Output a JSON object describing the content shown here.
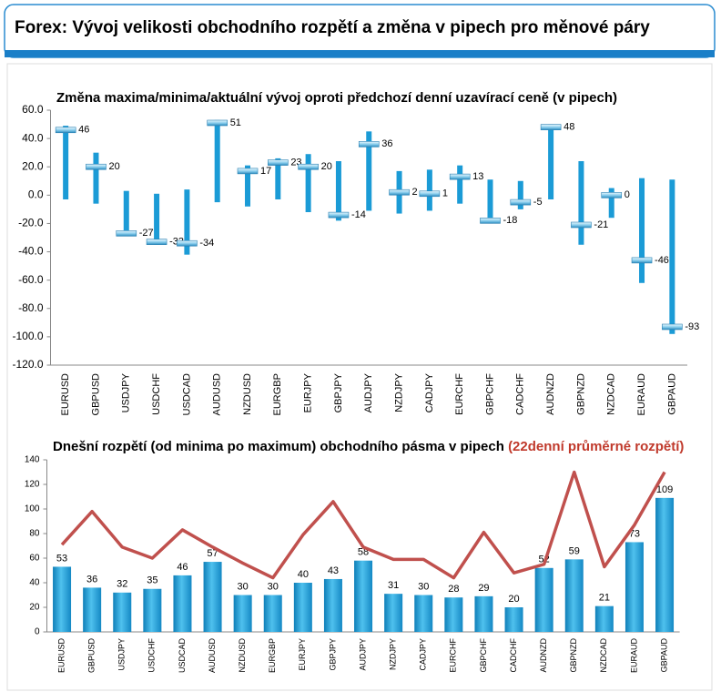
{
  "header": {
    "title": "Forex: Vývoj velikosti obchodního rozpětí a změna v pipech pro měnové páry"
  },
  "chart_data": [
    {
      "type": "range",
      "title": "Změna maxima/minima/aktuální vývoj oproti předchozí denní uzavírací ceně (v pipech)",
      "categories": [
        "EURUSD",
        "GBPUSD",
        "USDJPY",
        "USDCHF",
        "USDCAD",
        "AUDUSD",
        "NZDUSD",
        "EURGBP",
        "EURJPY",
        "GBPJPY",
        "AUDJPY",
        "NZDJPY",
        "CADJPY",
        "EURCHF",
        "GBPCHF",
        "CADCHF",
        "AUDNZD",
        "GBPNZD",
        "NZDCAD",
        "EURAUD",
        "GBPAUD"
      ],
      "high": [
        49,
        30,
        3,
        1,
        4,
        53,
        21,
        26,
        29,
        24,
        45,
        17,
        18,
        21,
        11,
        10,
        50,
        24,
        5,
        12,
        11
      ],
      "low": [
        -3,
        -6,
        -28,
        -35,
        -42,
        -5,
        -8,
        -3,
        -12,
        -18,
        -11,
        -13,
        -11,
        -6,
        -20,
        -10,
        -3,
        -35,
        -16,
        -62,
        -98
      ],
      "values": [
        46,
        20,
        -27,
        -33,
        -34,
        51,
        17,
        23,
        20,
        -14,
        36,
        2,
        1,
        13,
        -18,
        -5,
        48,
        -21,
        0,
        -46,
        -93
      ],
      "color": "#1b9bd6",
      "marker_color": "#8fd0ee",
      "ylim": [
        -120,
        60
      ],
      "yticks": [
        {
          "value": 60,
          "label": "60.0"
        },
        {
          "value": 40,
          "label": "40.0"
        },
        {
          "value": 20,
          "label": "20.0"
        },
        {
          "value": 0,
          "label": "0.0"
        },
        {
          "value": -20,
          "label": "-20.0"
        },
        {
          "value": -40,
          "label": "-40.0"
        },
        {
          "value": -60,
          "label": "-60.0"
        },
        {
          "value": -80,
          "label": "-80.0"
        },
        {
          "value": -100,
          "label": "-100.0"
        },
        {
          "value": -120,
          "label": "-120.0"
        }
      ]
    },
    {
      "type": "combo",
      "title": "Dnešní rozpětí (od minima po maximum) obchodního pásma v pipech",
      "subtitle": "(22denní průměrné rozpětí)",
      "categories": [
        "EURUSD",
        "GBPUSD",
        "USDJPY",
        "USDCHF",
        "USDCAD",
        "AUDUSD",
        "NZDUSD",
        "EURGBP",
        "EURJPY",
        "GBPJPY",
        "AUDJPY",
        "NZDJPY",
        "CADJPY",
        "EURCHF",
        "GBPCHF",
        "CADCHF",
        "AUDNZD",
        "GBPNZD",
        "NZDCAD",
        "EURAUD",
        "GBPAUD"
      ],
      "series": [
        {
          "type": "bar",
          "color": "#1b9bd6",
          "values": [
            53,
            36,
            32,
            35,
            46,
            57,
            30,
            30,
            40,
            43,
            58,
            31,
            30,
            28,
            29,
            20,
            52,
            59,
            21,
            73,
            109
          ]
        },
        {
          "type": "line",
          "color": "#c0504d",
          "values": [
            71,
            98,
            69,
            60,
            83,
            69,
            56,
            44,
            79,
            106,
            69,
            59,
            59,
            44,
            81,
            48,
            55,
            130,
            53,
            87,
            130
          ]
        }
      ],
      "ylim": [
        0,
        140
      ],
      "yticks": [
        0,
        20,
        40,
        60,
        80,
        100,
        120,
        140
      ]
    }
  ]
}
